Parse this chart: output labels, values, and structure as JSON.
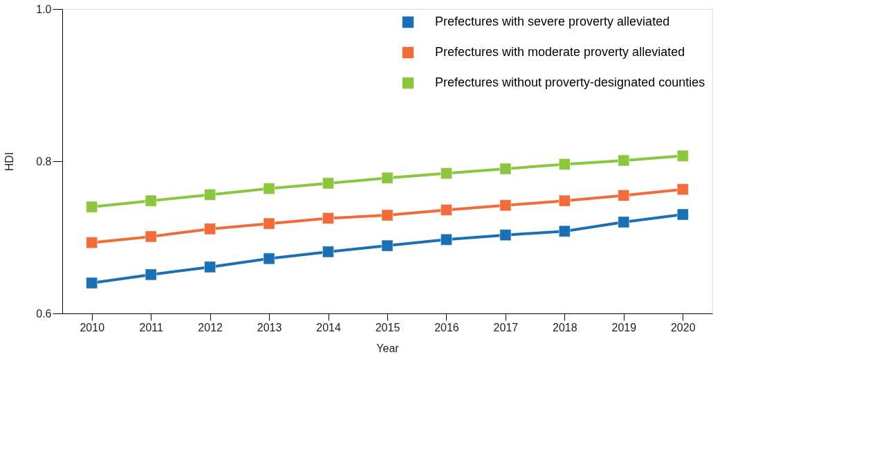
{
  "chart_data": {
    "type": "line",
    "xlabel": "Year",
    "ylabel": "HDI",
    "categories": [
      "2010",
      "2011",
      "2012",
      "2013",
      "2014",
      "2015",
      "2016",
      "2017",
      "2018",
      "2019",
      "2020"
    ],
    "series": [
      {
        "name": "Prefectures with severe proverty alleviated",
        "color": "#1a6fb5",
        "values": [
          0.64,
          0.651,
          0.661,
          0.672,
          0.681,
          0.689,
          0.697,
          0.703,
          0.708,
          0.72,
          0.73
        ]
      },
      {
        "name": "Prefectures with moderate proverty alleviated",
        "color": "#f26b3a",
        "values": [
          0.693,
          0.701,
          0.711,
          0.718,
          0.725,
          0.729,
          0.736,
          0.742,
          0.748,
          0.755,
          0.763
        ]
      },
      {
        "name": "Prefectures without proverty-designated counties",
        "color": "#8cc63f",
        "values": [
          0.74,
          0.748,
          0.756,
          0.764,
          0.771,
          0.778,
          0.784,
          0.79,
          0.796,
          0.801,
          0.807
        ]
      }
    ],
    "ylim": [
      0.6,
      1.0
    ],
    "yticks": [
      0.6,
      0.8,
      {
        "value": 1.0,
        "label": "1.0"
      }
    ],
    "grid": false,
    "legend": "top right",
    "marker": "square",
    "line_style": "solid"
  }
}
